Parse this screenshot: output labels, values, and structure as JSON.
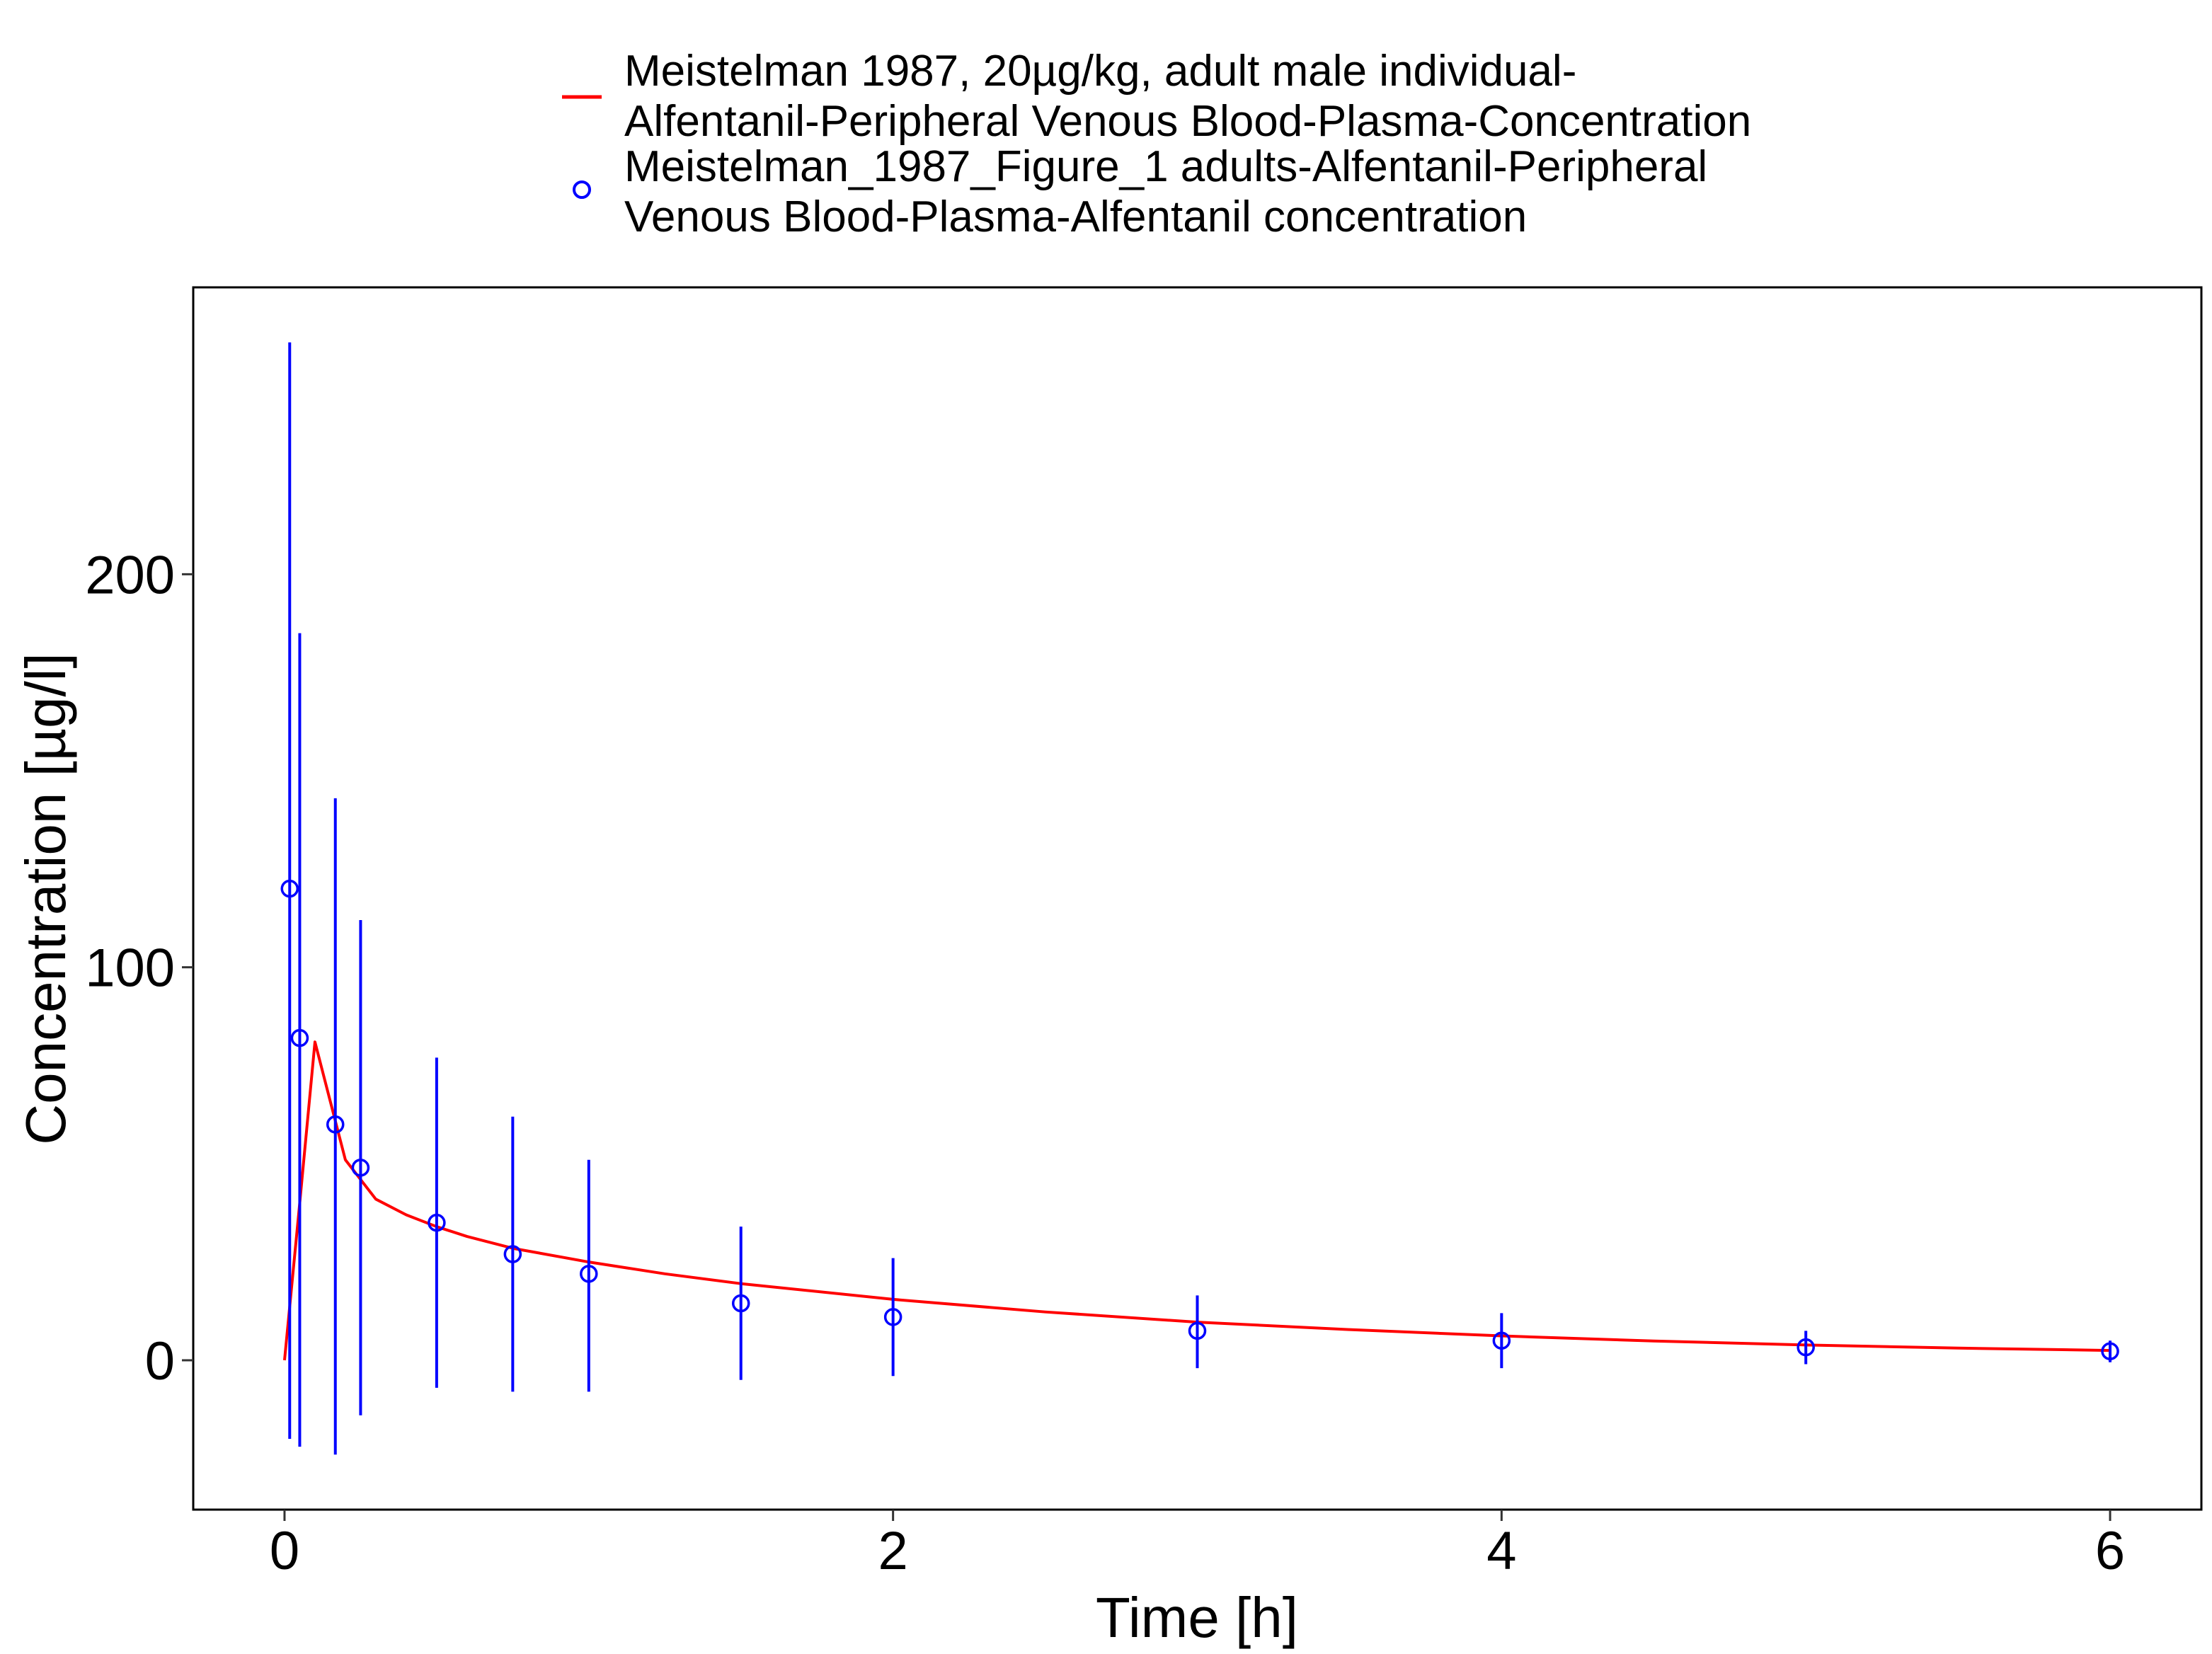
{
  "chart_data": {
    "type": "line",
    "xlabel": "Time [h]",
    "ylabel": "Concentration [µg/l]",
    "xlim": [
      -0.3,
      6.3
    ],
    "ylim": [
      -38,
      273
    ],
    "x_ticks": [
      0,
      2,
      4,
      6
    ],
    "x_tick_labels": [
      "0",
      "2",
      "4",
      "6"
    ],
    "y_ticks": [
      0,
      100,
      200
    ],
    "y_tick_labels": [
      "0",
      "100",
      "200"
    ],
    "grid": false,
    "legend_position": "top",
    "legend": [
      {
        "kind": "line",
        "color": "#ff0000",
        "lines": [
          "Meistelman 1987, 20µg/kg, adult male individual-",
          "Alfentanil-Peripheral Venous Blood-Plasma-Concentration"
        ]
      },
      {
        "kind": "point",
        "color": "#0000ff",
        "lines": [
          "Meistelman_1987_Figure_1 adults-Alfentanil-Peripheral",
          "Venous Blood-Plasma-Alfentanil concentration"
        ]
      }
    ],
    "series": [
      {
        "type": "line",
        "color": "#ff0000",
        "x": [
          0,
          0.05,
          0.1,
          0.15,
          0.2,
          0.25,
          0.3,
          0.4,
          0.5,
          0.6,
          0.75,
          1.0,
          1.25,
          1.5,
          2.0,
          2.5,
          3.0,
          3.5,
          4.0,
          4.5,
          5.0,
          5.5,
          6.0
        ],
        "y": [
          0,
          40,
          81,
          66,
          51,
          46,
          41,
          37,
          34,
          31.5,
          28.5,
          25,
          22,
          19.5,
          15.5,
          12.3,
          9.7,
          7.8,
          6.2,
          4.9,
          3.9,
          3.1,
          2.5
        ]
      },
      {
        "type": "scatter",
        "color": "#0000ff",
        "x": [
          0.017,
          0.05,
          0.167,
          0.25,
          0.5,
          0.75,
          1.0,
          1.5,
          2.0,
          3.0,
          4.0,
          5.0,
          6.0
        ],
        "y": [
          120,
          82,
          60,
          49,
          35,
          27,
          22,
          14.5,
          11,
          7.5,
          5,
          3.3,
          2.3
        ],
        "y_low": [
          -20,
          -22,
          -24,
          -14,
          -7,
          -8,
          -8,
          -5,
          -4,
          -2,
          -2,
          -1,
          -0.5
        ],
        "y_high": [
          259,
          185,
          143,
          112,
          77,
          62,
          51,
          34,
          26,
          16.5,
          12,
          7.5,
          5
        ]
      }
    ]
  }
}
